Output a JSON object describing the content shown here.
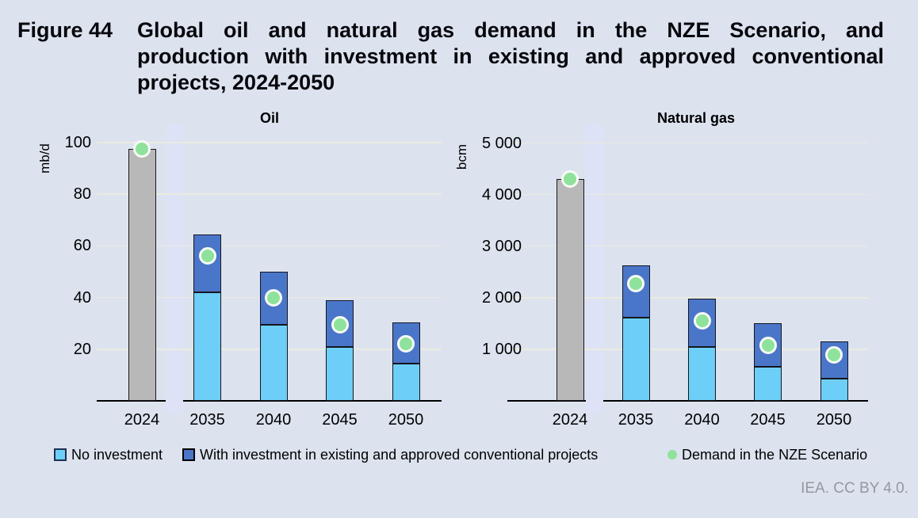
{
  "figure": {
    "label": "Figure 44",
    "title_lines": [
      "Global oil and natural gas demand in the NZE Scenario, and",
      "production with investment in existing and approved conventional",
      "projects, 2024-2050"
    ]
  },
  "colors": {
    "background": "#dce3ef",
    "separator_band": "#dee2f6",
    "gridline": "#ecebe0",
    "axis": "#000000",
    "bar_border": "#15151d",
    "bar_gray": "#b8b8b8",
    "bar_light_blue": "#6dcff7",
    "bar_dark_blue": "#4a76c9",
    "demand_green": "#8ee29b",
    "dot_ring_white": "#f6faf4",
    "footer_gray": "#97979c"
  },
  "legend": [
    {
      "label": "No investment",
      "marker": "square",
      "color_key": "bar_light_blue"
    },
    {
      "label": "With investment in existing and approved conventional projects",
      "marker": "square",
      "color_key": "bar_dark_blue"
    },
    {
      "label": "Demand in the NZE Scenario",
      "marker": "circle",
      "color_key": "demand_green"
    }
  ],
  "footer": "IEA. CC BY 4.0.",
  "chart_data": [
    {
      "type": "bar",
      "title": "Oil",
      "ylabel": "mb/d",
      "categories": [
        "2024",
        "2035",
        "2040",
        "2045",
        "2050"
      ],
      "ylim": [
        0,
        105
      ],
      "grid": true,
      "legend_position": "bottom",
      "yticks": [
        {
          "value": 20,
          "label": "20"
        },
        {
          "value": 40,
          "label": "40"
        },
        {
          "value": 60,
          "label": "60"
        },
        {
          "value": 80,
          "label": "80"
        },
        {
          "value": 100,
          "label": "100"
        }
      ],
      "series": [
        {
          "name": "2024 production",
          "role": "gray_bar",
          "values": [
            97.5,
            null,
            null,
            null,
            null
          ]
        },
        {
          "name": "No investment",
          "role": "stack_bottom",
          "values": [
            null,
            42,
            29.5,
            21,
            14.5
          ]
        },
        {
          "name": "With investment in existing and approved conventional projects",
          "role": "stack_total",
          "values": [
            null,
            64.5,
            50,
            39,
            30.5
          ]
        },
        {
          "name": "Demand in the NZE Scenario",
          "role": "dot",
          "values": [
            97.5,
            56,
            40,
            29.5,
            22
          ]
        }
      ]
    },
    {
      "type": "bar",
      "title": "Natural gas",
      "ylabel": "bcm",
      "categories": [
        "2024",
        "2035",
        "2040",
        "2045",
        "2050"
      ],
      "ylim": [
        0,
        5250
      ],
      "grid": true,
      "legend_position": "bottom",
      "yticks": [
        {
          "value": 1000,
          "label": "1 000"
        },
        {
          "value": 2000,
          "label": "2 000"
        },
        {
          "value": 3000,
          "label": "3 000"
        },
        {
          "value": 4000,
          "label": "4 000"
        },
        {
          "value": 5000,
          "label": "5 000"
        }
      ],
      "series": [
        {
          "name": "2024 production",
          "role": "gray_bar",
          "values": [
            4300,
            null,
            null,
            null,
            null
          ]
        },
        {
          "name": "No investment",
          "role": "stack_bottom",
          "values": [
            null,
            1620,
            1040,
            660,
            430
          ]
        },
        {
          "name": "With investment in existing and approved conventional projects",
          "role": "stack_total",
          "values": [
            null,
            2630,
            1980,
            1500,
            1150
          ]
        },
        {
          "name": "Demand in the NZE Scenario",
          "role": "dot",
          "values": [
            4300,
            2280,
            1550,
            1080,
            890
          ]
        }
      ]
    }
  ]
}
